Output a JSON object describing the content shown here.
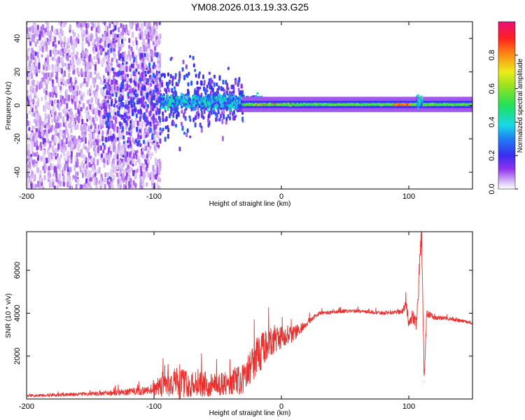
{
  "title": "YM08.2026.013.19.33.G25",
  "colors": {
    "signal": "#e8312e",
    "axis": "#000000",
    "background": "#ffffff"
  },
  "chart_data": [
    {
      "type": "heatmap",
      "name": "spectrogram",
      "xlabel": "Height of straight line (km)",
      "ylabel": "Frequency (Hz)",
      "xlim": [
        -200,
        150
      ],
      "ylim": [
        -50,
        50
      ],
      "x_ticks": [
        -200,
        -100,
        0,
        100
      ],
      "x_tick_labels": [
        "-200",
        "-100",
        "0",
        "100"
      ],
      "y_ticks": [
        -40,
        -20,
        0,
        20,
        40
      ],
      "y_tick_labels": [
        "-40",
        "-20",
        "0",
        "20",
        "40"
      ],
      "colorbar": {
        "label": "Normalized spectral amplitude",
        "range": [
          0,
          1
        ],
        "ticks": [
          0.0,
          0.2,
          0.4,
          0.6,
          0.8
        ],
        "tick_labels": [
          "0.0",
          "0.2",
          "0.4",
          "0.6",
          "0.8"
        ],
        "colormap": "rainbow (white → violet → blue → cyan → green → yellow → red → magenta)"
      },
      "regions": [
        {
          "x_range": [
            -200,
            -100
          ],
          "y_range": [
            -50,
            50
          ],
          "amplitude": 0.08,
          "description": "broadband low-amplitude noise"
        },
        {
          "x_range": [
            -140,
            -40
          ],
          "y_range": [
            -12,
            18
          ],
          "amplitude": 0.2,
          "description": "noise narrowing toward center"
        },
        {
          "x_range": [
            -90,
            -30
          ],
          "y_range": [
            -5,
            8
          ],
          "amplitude": 0.35,
          "description": "emerging carrier"
        },
        {
          "x_range": [
            -30,
            150
          ],
          "y_range": [
            -3,
            3
          ],
          "amplitude": 0.55,
          "description": "narrow carrier near 0 Hz"
        },
        {
          "x_range": [
            90,
            110
          ],
          "y_range": [
            -2,
            3
          ],
          "amplitude": 0.85,
          "description": "strong carrier segment"
        }
      ]
    },
    {
      "type": "line",
      "name": "snr",
      "xlabel": "Height of straight line (km)",
      "ylabel": "SNR (10 * v/v)",
      "xlim": [
        -200,
        150
      ],
      "ylim": [
        0,
        7800
      ],
      "x_ticks": [
        -200,
        -100,
        0,
        100
      ],
      "x_tick_labels": [
        "-200",
        "-100",
        "0",
        "100"
      ],
      "y_ticks": [
        2000,
        4000,
        6000
      ],
      "y_tick_labels": [
        "2000",
        "4000",
        "6000"
      ],
      "series": [
        {
          "name": "SNR",
          "color": "#e8312e",
          "x": [
            -200,
            -180,
            -160,
            -140,
            -120,
            -105,
            -100,
            -90,
            -80,
            -70,
            -60,
            -50,
            -40,
            -30,
            -25,
            -20,
            -15,
            -10,
            -5,
            0,
            5,
            10,
            15,
            20,
            25,
            30,
            40,
            50,
            60,
            70,
            80,
            90,
            95,
            98,
            100,
            103,
            106,
            108,
            110,
            112,
            114,
            120,
            130,
            140,
            150
          ],
          "y": [
            150,
            180,
            220,
            260,
            330,
            400,
            550,
            700,
            750,
            700,
            700,
            650,
            800,
            950,
            1400,
            1900,
            2300,
            2600,
            2800,
            2900,
            3000,
            3100,
            3300,
            3500,
            3800,
            4000,
            4050,
            4100,
            4100,
            4050,
            4000,
            4050,
            4100,
            4400,
            3500,
            3800,
            3500,
            5500,
            7800,
            800,
            4000,
            3800,
            3750,
            3650,
            3550
          ],
          "band_width": [
            120,
            140,
            170,
            200,
            300,
            400,
            800,
            1200,
            1500,
            1200,
            1200,
            1000,
            1200,
            1500,
            1600,
            1800,
            1800,
            1500,
            1400,
            1100,
            900,
            800,
            500,
            300,
            220,
            160,
            150,
            150,
            150,
            150,
            150,
            160,
            300,
            600,
            400,
            500,
            600,
            1200,
            1200,
            800,
            400,
            200,
            160,
            150,
            150
          ]
        }
      ]
    }
  ]
}
